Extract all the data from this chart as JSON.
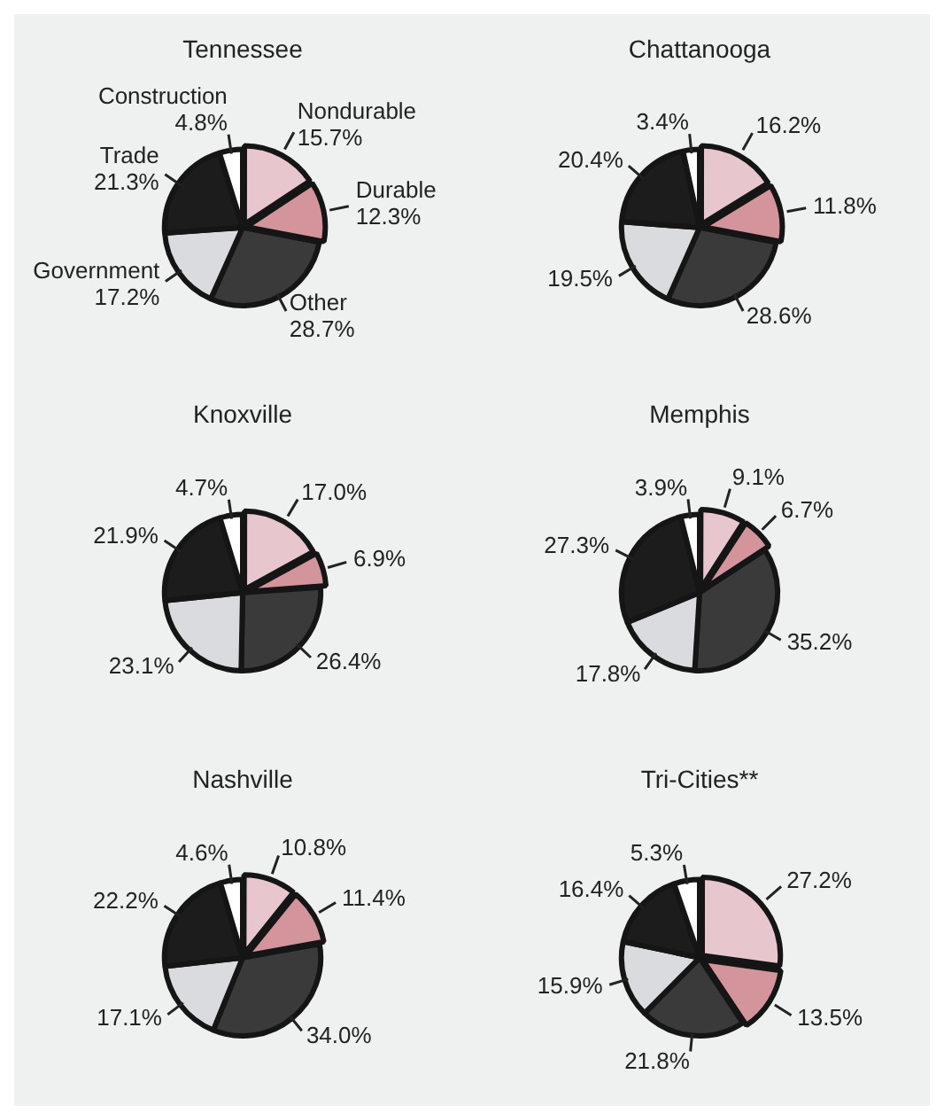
{
  "chart_data": [
    {
      "type": "pie",
      "title": "Tennessee",
      "categories": [
        "Nondurable",
        "Durable",
        "Other",
        "Government",
        "Trade",
        "Construction"
      ],
      "values": [
        15.7,
        12.3,
        28.7,
        17.2,
        21.3,
        4.8
      ],
      "value_labels": [
        "15.7%",
        "12.3%",
        "28.7%",
        "17.2%",
        "21.3%",
        "4.8%"
      ],
      "colors": [
        "#e8c6ce",
        "#d3949b",
        "#3a3a3a",
        "#d9dbde",
        "#1c1c1c",
        "#ffffff"
      ],
      "legend": false
    },
    {
      "type": "pie",
      "title": "Chattanooga",
      "categories": [
        null,
        null,
        null,
        null,
        null,
        null
      ],
      "values": [
        16.2,
        11.8,
        28.6,
        19.5,
        20.4,
        3.4
      ],
      "value_labels": [
        "16.2%",
        "11.8%",
        "28.6%",
        "19.5%",
        "20.4%",
        "3.4%"
      ],
      "colors": [
        "#e8c6ce",
        "#d3949b",
        "#3a3a3a",
        "#d9dbde",
        "#1c1c1c",
        "#ffffff"
      ],
      "legend": false
    },
    {
      "type": "pie",
      "title": "Knoxville",
      "categories": [
        null,
        null,
        null,
        null,
        null,
        null
      ],
      "values": [
        17.0,
        6.9,
        26.4,
        23.1,
        21.9,
        4.7
      ],
      "value_labels": [
        "17.0%",
        "6.9%",
        "26.4%",
        "23.1%",
        "21.9%",
        "4.7%"
      ],
      "colors": [
        "#e8c6ce",
        "#d3949b",
        "#3a3a3a",
        "#d9dbde",
        "#1c1c1c",
        "#ffffff"
      ],
      "legend": false
    },
    {
      "type": "pie",
      "title": "Memphis",
      "categories": [
        null,
        null,
        null,
        null,
        null,
        null
      ],
      "values": [
        9.1,
        6.7,
        35.2,
        17.8,
        27.3,
        3.9
      ],
      "value_labels": [
        "9.1%",
        "6.7%",
        "35.2%",
        "17.8%",
        "27.3%",
        "3.9%"
      ],
      "colors": [
        "#e8c6ce",
        "#d3949b",
        "#3a3a3a",
        "#d9dbde",
        "#1c1c1c",
        "#ffffff"
      ],
      "legend": false
    },
    {
      "type": "pie",
      "title": "Nashville",
      "categories": [
        null,
        null,
        null,
        null,
        null,
        null
      ],
      "values": [
        10.8,
        11.4,
        34.0,
        17.1,
        22.2,
        4.6
      ],
      "value_labels": [
        "10.8%",
        "11.4%",
        "34.0%",
        "17.1%",
        "22.2%",
        "4.6%"
      ],
      "colors": [
        "#e8c6ce",
        "#d3949b",
        "#3a3a3a",
        "#d9dbde",
        "#1c1c1c",
        "#ffffff"
      ],
      "legend": false
    },
    {
      "type": "pie",
      "title": "Tri-Cities**",
      "categories": [
        null,
        null,
        null,
        null,
        null,
        null
      ],
      "values": [
        27.2,
        13.5,
        21.8,
        15.9,
        16.4,
        5.3
      ],
      "value_labels": [
        "27.2%",
        "13.5%",
        "21.8%",
        "15.9%",
        "16.4%",
        "5.3%"
      ],
      "colors": [
        "#e8c6ce",
        "#d3949b",
        "#3a3a3a",
        "#d9dbde",
        "#1c1c1c",
        "#ffffff"
      ],
      "legend": false
    }
  ]
}
